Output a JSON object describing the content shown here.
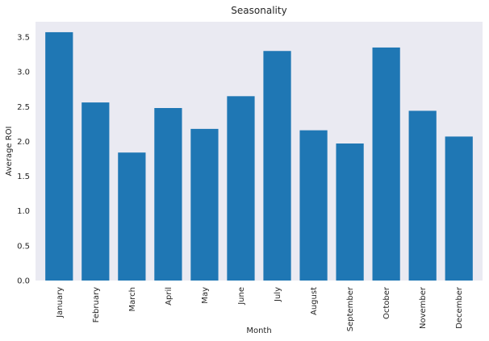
{
  "chart_data": {
    "type": "bar",
    "title": "Seasonality",
    "xlabel": "Month",
    "ylabel": "Average ROI",
    "categories": [
      "January",
      "February",
      "March",
      "April",
      "May",
      "June",
      "July",
      "August",
      "September",
      "October",
      "November",
      "December"
    ],
    "values": [
      3.57,
      2.56,
      1.84,
      2.48,
      2.18,
      2.65,
      3.3,
      2.16,
      1.97,
      3.35,
      2.44,
      2.07
    ],
    "ylim": [
      0,
      3.72
    ],
    "yticks": [
      0.0,
      0.5,
      1.0,
      1.5,
      2.0,
      2.5,
      3.0,
      3.5
    ],
    "ytick_labels": [
      "0.0",
      "0.5",
      "1.0",
      "1.5",
      "2.0",
      "2.5",
      "3.0",
      "3.5"
    ],
    "grid": false,
    "bar_color": "#1f77b4",
    "plot_background": "#eaeaf2"
  }
}
